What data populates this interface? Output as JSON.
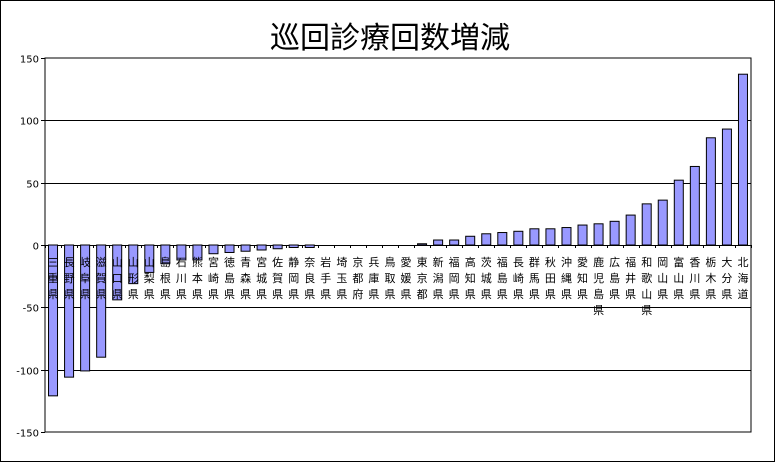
{
  "chart_data": {
    "type": "bar",
    "title": "巡回診療回数増減",
    "xlabel": "",
    "ylabel": "",
    "ylim": [
      -150,
      150
    ],
    "yticks": [
      150,
      100,
      50,
      0,
      -50,
      -100,
      -150
    ],
    "grid": true,
    "bar_color": "#9999ff",
    "categories": [
      "三重県",
      "長野県",
      "岐阜県",
      "滋賀県",
      "山口県",
      "山形県",
      "山梨県",
      "島根県",
      "石川県",
      "熊本県",
      "宮崎県",
      "徳島県",
      "青森県",
      "宮城県",
      "佐賀県",
      "静岡県",
      "奈良県",
      "岩手県",
      "埼玉県",
      "京都府",
      "兵庫県",
      "鳥取県",
      "愛媛県",
      "東京都",
      "新潟県",
      "福岡県",
      "高知県",
      "茨城県",
      "福島県",
      "長崎県",
      "群馬県",
      "秋田県",
      "沖縄県",
      "愛知県",
      "鹿児島県",
      "広島県",
      "福井県",
      "和歌山県",
      "岡山県",
      "富山県",
      "香川県",
      "栃木県",
      "大分県",
      "北海道"
    ],
    "values": [
      -121,
      -106,
      -101,
      -90,
      -44,
      -31,
      -22,
      -15,
      -12,
      -12,
      -7,
      -6,
      -5,
      -4,
      -3,
      -2,
      -2,
      0,
      0,
      0,
      0,
      0,
      0,
      1,
      4,
      4,
      7,
      9,
      10,
      11,
      13,
      13,
      14,
      16,
      17,
      19,
      24,
      33,
      36,
      52,
      63,
      86,
      93,
      137
    ]
  }
}
